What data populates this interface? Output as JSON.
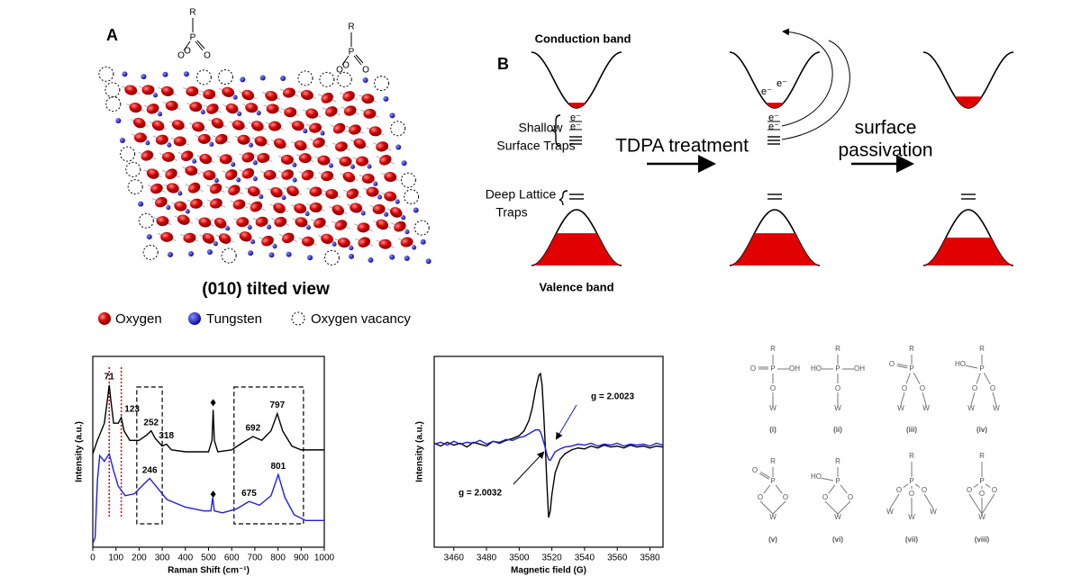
{
  "panel_a": {
    "label": "A",
    "caption": "(010) tilted view",
    "atoms": {
      "R": "R",
      "P": "P",
      "O": "O"
    },
    "legend": [
      "Oxygen",
      "Tungsten",
      "Oxygen vacancy"
    ]
  },
  "panel_b": {
    "label": "B",
    "conduction_band": "Conduction band",
    "valence_band": "Valence band",
    "shallow_traps": [
      "Shallow",
      "Surface Traps"
    ],
    "deep_traps": [
      "Deep Lattice",
      "Traps"
    ],
    "electron": "e⁻",
    "step_1": "TDPA treatment",
    "step_2": [
      "surface",
      "passivation"
    ]
  },
  "chart_data": [
    {
      "type": "line",
      "x_label": "Raman Shift (cm⁻¹)",
      "y_label": "Intensity (a.u.)",
      "xlim": [
        0,
        1000
      ],
      "xticks": [
        0,
        100,
        200,
        300,
        400,
        500,
        600,
        700,
        800,
        900,
        1000
      ],
      "ylim": [
        0,
        10
      ],
      "regions": [
        [
          190,
          300
        ],
        [
          610,
          910
        ]
      ],
      "markers": [
        520
      ],
      "reference_line_color": "#e00000",
      "series": [
        {
          "color": "#000000",
          "x": [
            0,
            20,
            50,
            65,
            71,
            78,
            90,
            110,
            123,
            135,
            160,
            200,
            235,
            252,
            270,
            300,
            318,
            340,
            400,
            500,
            515,
            520,
            525,
            540,
            600,
            650,
            692,
            730,
            770,
            797,
            820,
            860,
            900,
            950,
            1000
          ],
          "values": [
            4.9,
            5.6,
            6.5,
            7.9,
            8.5,
            7.7,
            6.5,
            6.5,
            6.8,
            6.1,
            5.6,
            5.6,
            5.9,
            6.1,
            5.7,
            5.3,
            5.4,
            5.1,
            5.0,
            5.0,
            5.6,
            7.2,
            5.6,
            5.0,
            5.1,
            5.5,
            5.8,
            5.6,
            6.1,
            7.0,
            6.1,
            5.3,
            5.1,
            5.1,
            5.1
          ],
          "peaks": [
            71,
            123,
            252,
            318,
            692,
            797
          ],
          "reference_peaks": [
            71,
            123
          ]
        },
        {
          "color": "#1f1fe0",
          "x": [
            0,
            10,
            20,
            30,
            50,
            71,
            90,
            110,
            140,
            180,
            220,
            246,
            280,
            320,
            400,
            480,
            510,
            518,
            525,
            560,
            620,
            675,
            720,
            770,
            801,
            830,
            870,
            920,
            1000
          ],
          "values": [
            0.2,
            0.5,
            3.5,
            4.8,
            4.5,
            4.9,
            4.0,
            3.2,
            2.7,
            2.8,
            3.3,
            3.6,
            3.1,
            2.5,
            2.1,
            1.9,
            1.9,
            2.6,
            1.9,
            1.8,
            2.0,
            2.4,
            2.2,
            2.7,
            3.8,
            2.6,
            1.7,
            1.4,
            1.4
          ],
          "peaks": [
            246,
            675,
            801
          ]
        }
      ]
    },
    {
      "type": "line",
      "x_label": "Magnetic field (G)",
      "y_label": "Intensity (a.u.)",
      "xlim": [
        3448,
        3588
      ],
      "xticks": [
        3460,
        3480,
        3500,
        3520,
        3540,
        3560,
        3580
      ],
      "ylim": [
        -10,
        10
      ],
      "series": [
        {
          "color": "#000000",
          "annotation": "g = 2.0032",
          "x": [
            3448,
            3452,
            3456,
            3460,
            3464,
            3468,
            3472,
            3476,
            3480,
            3484,
            3488,
            3492,
            3496,
            3500,
            3503,
            3506,
            3508,
            3510,
            3512,
            3513,
            3514,
            3515,
            3516,
            3517,
            3518,
            3519,
            3520,
            3522,
            3525,
            3528,
            3532,
            3536,
            3540,
            3544,
            3548,
            3552,
            3556,
            3560,
            3564,
            3568,
            3572,
            3576,
            3580,
            3584,
            3588
          ],
          "values": [
            0.9,
            0.6,
            1.0,
            0.7,
            0.9,
            0.5,
            1.0,
            0.8,
            0.6,
            1.1,
            0.9,
            1.2,
            1.4,
            1.7,
            2.2,
            3.3,
            4.6,
            6.5,
            8.0,
            8.2,
            7.0,
            4.0,
            0.5,
            -3.5,
            -6.9,
            -6.2,
            -4.5,
            -2.2,
            -0.8,
            -0.2,
            0.2,
            0.4,
            0.3,
            0.6,
            0.4,
            0.7,
            0.5,
            0.6,
            0.4,
            0.7,
            0.5,
            0.6,
            0.4,
            0.6,
            0.5
          ]
        },
        {
          "color": "#1f1fe0",
          "annotation": "g = 2.0023",
          "x": [
            3448,
            3452,
            3456,
            3460,
            3464,
            3468,
            3472,
            3476,
            3480,
            3484,
            3488,
            3492,
            3496,
            3500,
            3503,
            3506,
            3508,
            3510,
            3512,
            3513,
            3514,
            3515,
            3516,
            3517,
            3518,
            3519,
            3520,
            3522,
            3525,
            3528,
            3532,
            3536,
            3540,
            3544,
            3548,
            3552,
            3556,
            3560,
            3564,
            3568,
            3572,
            3576,
            3580,
            3584,
            3588
          ],
          "values": [
            0.8,
            1.0,
            0.7,
            1.1,
            0.8,
            1.0,
            0.9,
            1.2,
            0.8,
            1.1,
            1.0,
            1.3,
            1.2,
            1.5,
            1.6,
            1.9,
            2.1,
            2.3,
            2.3,
            2.1,
            1.6,
            1.0,
            0.4,
            -0.3,
            -0.8,
            -0.9,
            -0.6,
            0.0,
            0.3,
            0.5,
            0.6,
            0.8,
            0.7,
            0.9,
            0.6,
            0.8,
            0.7,
            0.9,
            0.6,
            0.8,
            0.7,
            0.8,
            0.6,
            0.9,
            0.7
          ]
        }
      ]
    }
  ],
  "binding_modes": {
    "atoms": {
      "R": "R",
      "P": "P",
      "O": "O",
      "OH": "OH",
      "HO": "HO",
      "W": "W"
    },
    "labels": [
      "(i)",
      "(ii)",
      "(iii)",
      "(iv)",
      "(v)",
      "(vi)",
      "(vii)",
      "(viii)"
    ]
  }
}
